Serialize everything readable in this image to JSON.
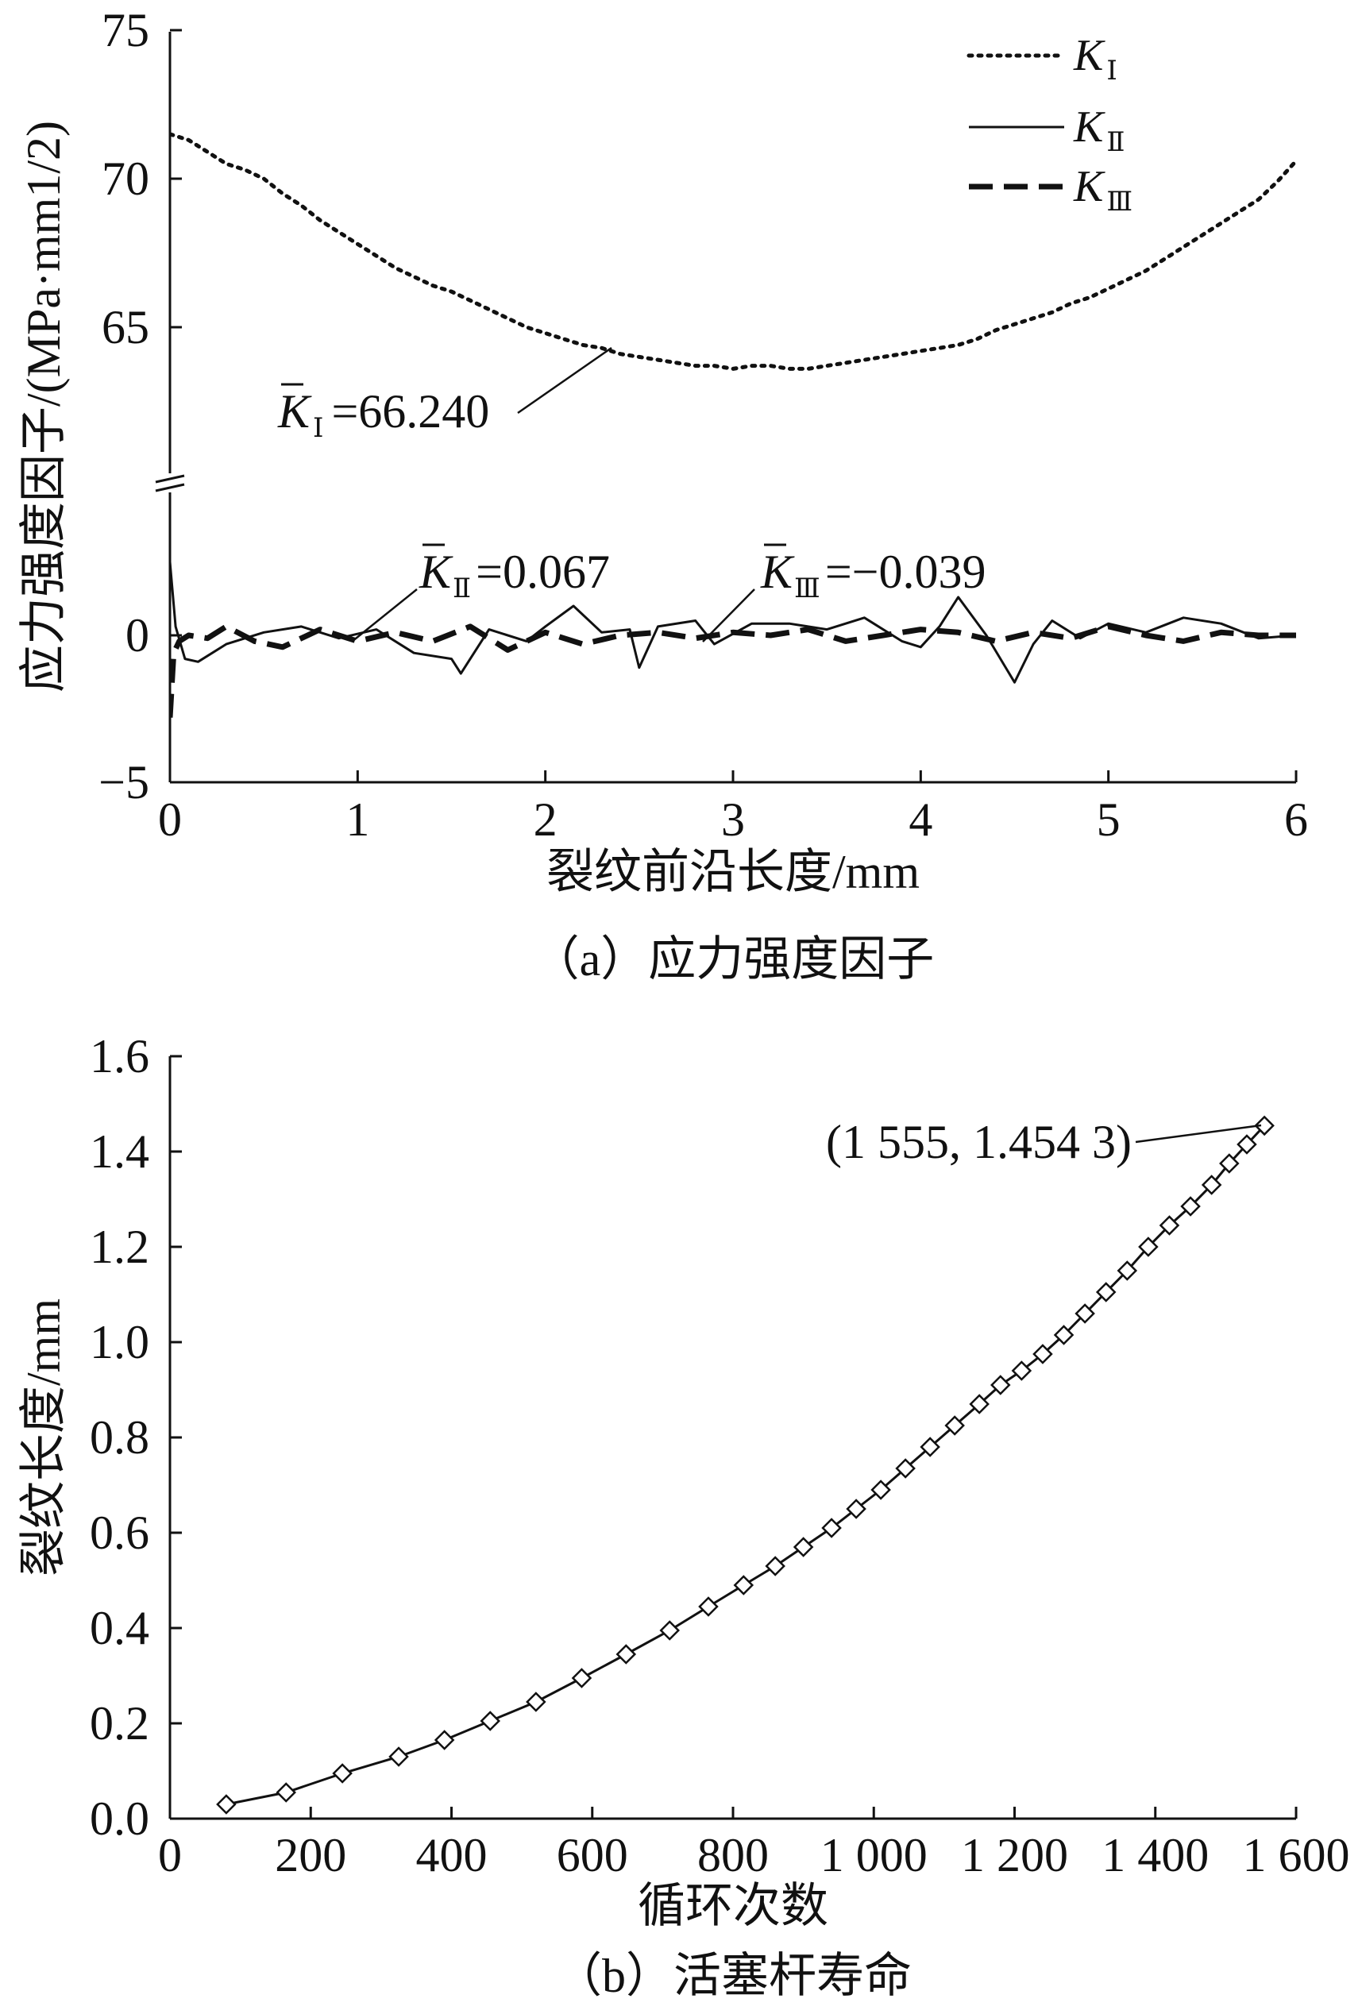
{
  "chart_data": [
    {
      "type": "line",
      "caption": "（a）应力强度因子",
      "xlabel": "裂纹前沿长度/mm",
      "ylabel": "应力强度因子/(MPa·mm1/2)",
      "xlim": [
        0,
        6
      ],
      "x_ticks": [
        "0",
        "1",
        "2",
        "3",
        "4",
        "5",
        "6"
      ],
      "upper_ylim": [
        60,
        75
      ],
      "upper_y_ticks": [
        "65",
        "70",
        "75"
      ],
      "lower_ylim": [
        -5,
        5
      ],
      "lower_y_ticks": [
        "−5",
        "0"
      ],
      "axis_break": true,
      "legend": {
        "position": "top-right",
        "entries": [
          {
            "symbol": "K",
            "sub": "Ⅰ",
            "style": "dotted"
          },
          {
            "symbol": "K",
            "sub": "Ⅱ",
            "style": "solid"
          },
          {
            "symbol": "K",
            "sub": "Ⅲ",
            "style": "dashed"
          }
        ]
      },
      "series": [
        {
          "name": "KⅠ",
          "style": "dotted",
          "x": [
            0,
            0.1,
            0.2,
            0.3,
            0.4,
            0.5,
            0.6,
            0.7,
            0.8,
            0.9,
            1.0,
            1.1,
            1.2,
            1.3,
            1.4,
            1.5,
            1.6,
            1.7,
            1.8,
            1.9,
            2.0,
            2.1,
            2.2,
            2.3,
            2.4,
            2.5,
            2.6,
            2.7,
            2.8,
            2.9,
            3.0,
            3.1,
            3.2,
            3.3,
            3.4,
            3.5,
            3.6,
            3.7,
            3.8,
            3.9,
            4.0,
            4.1,
            4.2,
            4.3,
            4.4,
            4.5,
            4.6,
            4.7,
            4.8,
            4.9,
            5.0,
            5.1,
            5.2,
            5.3,
            5.4,
            5.5,
            5.6,
            5.7,
            5.8,
            5.9,
            6.0
          ],
          "y": [
            71.5,
            71.3,
            70.9,
            70.5,
            70.3,
            70.0,
            69.5,
            69.1,
            68.6,
            68.2,
            67.8,
            67.4,
            67.0,
            66.7,
            66.4,
            66.2,
            65.9,
            65.6,
            65.3,
            65.0,
            64.8,
            64.6,
            64.4,
            64.3,
            64.1,
            64.0,
            63.9,
            63.8,
            63.7,
            63.7,
            63.6,
            63.7,
            63.7,
            63.6,
            63.6,
            63.7,
            63.8,
            63.9,
            64.0,
            64.1,
            64.2,
            64.3,
            64.4,
            64.6,
            64.9,
            65.1,
            65.3,
            65.5,
            65.8,
            66.0,
            66.3,
            66.6,
            66.9,
            67.3,
            67.7,
            68.1,
            68.5,
            68.9,
            69.3,
            69.9,
            70.6
          ]
        },
        {
          "name": "KⅡ",
          "style": "solid",
          "x": [
            0,
            0.03,
            0.08,
            0.15,
            0.3,
            0.5,
            0.7,
            0.9,
            1.1,
            1.3,
            1.5,
            1.55,
            1.7,
            1.9,
            2.0,
            2.15,
            2.3,
            2.45,
            2.5,
            2.6,
            2.8,
            2.9,
            3.1,
            3.3,
            3.5,
            3.7,
            3.9,
            4.0,
            4.1,
            4.2,
            4.35,
            4.5,
            4.6,
            4.7,
            4.85,
            5.0,
            5.2,
            5.4,
            5.6,
            5.8,
            6.0
          ],
          "y": [
            2.5,
            0.3,
            -0.8,
            -0.9,
            -0.3,
            0.1,
            0.3,
            -0.1,
            0.2,
            -0.6,
            -0.8,
            -1.3,
            0.2,
            -0.2,
            0.3,
            1.0,
            0.1,
            0.2,
            -1.1,
            0.3,
            0.5,
            -0.3,
            0.4,
            0.4,
            0.2,
            0.6,
            -0.2,
            -0.4,
            0.3,
            1.3,
            0.0,
            -1.6,
            -0.3,
            0.5,
            -0.1,
            0.4,
            0.1,
            0.6,
            0.4,
            -0.1,
            0.0
          ]
        },
        {
          "name": "KⅢ",
          "style": "dashed",
          "x": [
            0,
            0.02,
            0.05,
            0.1,
            0.2,
            0.3,
            0.45,
            0.6,
            0.8,
            1.0,
            1.2,
            1.4,
            1.6,
            1.8,
            2.0,
            2.2,
            2.4,
            2.6,
            2.8,
            3.0,
            3.2,
            3.4,
            3.6,
            3.8,
            4.0,
            4.2,
            4.4,
            4.6,
            4.8,
            5.0,
            5.2,
            5.4,
            5.6,
            5.8,
            6.0
          ],
          "y": [
            -2.8,
            -0.6,
            -0.2,
            0.0,
            -0.1,
            0.3,
            -0.2,
            -0.4,
            0.2,
            -0.2,
            0.1,
            -0.2,
            0.3,
            -0.5,
            0.1,
            -0.3,
            0.0,
            0.1,
            -0.1,
            0.1,
            0.0,
            0.2,
            -0.2,
            0.0,
            0.2,
            0.1,
            -0.2,
            0.1,
            -0.1,
            0.3,
            0.0,
            -0.2,
            0.1,
            0.0,
            0.0
          ]
        }
      ],
      "annotations": [
        {
          "symbol": "K",
          "sub": "Ⅰ",
          "text": "=66.240"
        },
        {
          "symbol": "K",
          "sub": "Ⅱ",
          "text": "=0.067"
        },
        {
          "symbol": "K",
          "sub": "Ⅲ",
          "text": "=−0.039"
        }
      ]
    },
    {
      "type": "line",
      "caption": "（b）活塞杆寿命",
      "xlabel": "循环次数",
      "ylabel": "裂纹长度/mm",
      "xlim": [
        0,
        1600
      ],
      "ylim": [
        0,
        1.6
      ],
      "x_ticks": [
        "0",
        "200",
        "400",
        "600",
        "800",
        "1 000",
        "1 200",
        "1 400",
        "1 600"
      ],
      "y_ticks": [
        "0.0",
        "0.2",
        "0.4",
        "0.6",
        "0.8",
        "1.0",
        "1.2",
        "1.4",
        "1.6"
      ],
      "marker": "diamond",
      "series": [
        {
          "x": [
            80,
            165,
            245,
            325,
            390,
            455,
            520,
            585,
            648,
            710,
            765,
            815,
            860,
            900,
            940,
            975,
            1010,
            1045,
            1080,
            1115,
            1150,
            1180,
            1210,
            1240,
            1270,
            1300,
            1330,
            1360,
            1390,
            1420,
            1450,
            1480,
            1505,
            1530,
            1555
          ],
          "y": [
            0.03,
            0.055,
            0.095,
            0.13,
            0.165,
            0.205,
            0.245,
            0.295,
            0.345,
            0.395,
            0.445,
            0.49,
            0.53,
            0.57,
            0.61,
            0.65,
            0.69,
            0.735,
            0.78,
            0.825,
            0.87,
            0.91,
            0.94,
            0.975,
            1.015,
            1.06,
            1.105,
            1.15,
            1.2,
            1.245,
            1.285,
            1.33,
            1.375,
            1.415,
            1.4543
          ]
        }
      ],
      "annotation": {
        "text": "(1 555, 1.454 3)"
      }
    }
  ]
}
